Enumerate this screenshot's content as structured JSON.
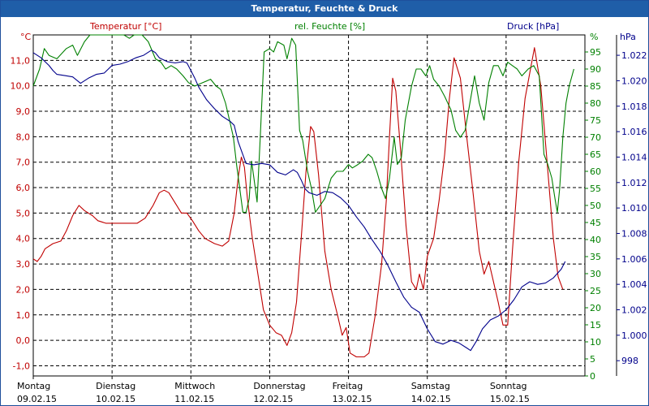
{
  "window": {
    "title": "Temperatur, Feuchte & Druck"
  },
  "chart_data": {
    "type": "line",
    "title": "Temperatur, Feuchte & Druck",
    "x_range": [
      0,
      7
    ],
    "x_unit": "days",
    "categories": [
      {
        "day": "Montag",
        "date": "09.02.15"
      },
      {
        "day": "Dienstag",
        "date": "10.02.15"
      },
      {
        "day": "Mittwoch",
        "date": "11.02.15"
      },
      {
        "day": "Donnerstag",
        "date": "12.02.15"
      },
      {
        "day": "Freitag",
        "date": "13.02.15"
      },
      {
        "day": "Samstag",
        "date": "14.02.15"
      },
      {
        "day": "Sonntag",
        "date": "15.02.15"
      }
    ],
    "grid": true,
    "axes": [
      {
        "id": "temp",
        "side": "left",
        "unit": "°C",
        "label": "Temperatur [°C]",
        "range": [
          -1.4,
          12.0
        ],
        "ticks": [
          "11,0",
          "10,0",
          "9,0",
          "8,0",
          "7,0",
          "6,0",
          "5,0",
          "4,0",
          "3,0",
          "2,0",
          "1,0",
          "0,0",
          "-1,0"
        ],
        "color": "#c00000"
      },
      {
        "id": "hum",
        "side": "right",
        "unit": "%",
        "label": "rel. Feuchte [%]",
        "range": [
          0,
          100
        ],
        "ticks": [
          "95",
          "90",
          "85",
          "80",
          "75",
          "70",
          "65",
          "60",
          "55",
          "50",
          "45",
          "40",
          "35",
          "30",
          "25",
          "20",
          "15",
          "10",
          "5",
          "0"
        ],
        "color": "#008000"
      },
      {
        "id": "press",
        "side": "right",
        "unit": "hPa",
        "label": "Druck [hPa]",
        "range": [
          0.9968,
          1.0236
        ],
        "ticks": [
          "1.022",
          "1.020",
          "1.018",
          "1.016",
          "1.014",
          "1.012",
          "1.010",
          "1.008",
          "1.006",
          "1.004",
          "1.002",
          "1.000",
          "998"
        ],
        "color": "#00008b"
      }
    ],
    "series": [
      {
        "name": "Temperatur",
        "axis": "temp",
        "color": "#c00000",
        "points": [
          [
            0,
            3.2
          ],
          [
            0.05,
            3.1
          ],
          [
            0.1,
            3.3
          ],
          [
            0.15,
            3.6
          ],
          [
            0.25,
            3.8
          ],
          [
            0.35,
            3.9
          ],
          [
            0.42,
            4.3
          ],
          [
            0.5,
            4.9
          ],
          [
            0.58,
            5.3
          ],
          [
            0.65,
            5.1
          ],
          [
            0.75,
            4.9
          ],
          [
            0.82,
            4.7
          ],
          [
            0.92,
            4.6
          ],
          [
            1.0,
            4.6
          ],
          [
            1.1,
            4.6
          ],
          [
            1.2,
            4.6
          ],
          [
            1.32,
            4.6
          ],
          [
            1.42,
            4.8
          ],
          [
            1.52,
            5.3
          ],
          [
            1.6,
            5.8
          ],
          [
            1.66,
            5.9
          ],
          [
            1.72,
            5.8
          ],
          [
            1.8,
            5.4
          ],
          [
            1.88,
            5.0
          ],
          [
            1.95,
            5.0
          ],
          [
            2.02,
            4.7
          ],
          [
            2.1,
            4.3
          ],
          [
            2.18,
            4.0
          ],
          [
            2.3,
            3.8
          ],
          [
            2.4,
            3.7
          ],
          [
            2.48,
            3.9
          ],
          [
            2.55,
            5.0
          ],
          [
            2.6,
            6.4
          ],
          [
            2.64,
            7.2
          ],
          [
            2.68,
            6.8
          ],
          [
            2.72,
            5.5
          ],
          [
            2.78,
            4.0
          ],
          [
            2.85,
            2.6
          ],
          [
            2.92,
            1.2
          ],
          [
            3.0,
            0.6
          ],
          [
            3.08,
            0.3
          ],
          [
            3.15,
            0.2
          ],
          [
            3.22,
            -0.2
          ],
          [
            3.28,
            0.3
          ],
          [
            3.34,
            1.5
          ],
          [
            3.4,
            4.0
          ],
          [
            3.46,
            6.6
          ],
          [
            3.52,
            8.4
          ],
          [
            3.56,
            8.2
          ],
          [
            3.62,
            6.5
          ],
          [
            3.7,
            3.5
          ],
          [
            3.78,
            2.0
          ],
          [
            3.86,
            1.0
          ],
          [
            3.92,
            0.2
          ],
          [
            3.97,
            0.5
          ],
          [
            4.02,
            -0.5
          ],
          [
            4.1,
            -0.65
          ],
          [
            4.2,
            -0.65
          ],
          [
            4.26,
            -0.5
          ],
          [
            4.34,
            1.0
          ],
          [
            4.42,
            3.0
          ],
          [
            4.48,
            5.5
          ],
          [
            4.52,
            8.0
          ],
          [
            4.56,
            10.3
          ],
          [
            4.6,
            9.8
          ],
          [
            4.66,
            7.5
          ],
          [
            4.73,
            4.5
          ],
          [
            4.8,
            2.3
          ],
          [
            4.86,
            2.0
          ],
          [
            4.9,
            2.6
          ],
          [
            4.95,
            2.0
          ],
          [
            5.0,
            3.3
          ],
          [
            5.08,
            4.0
          ],
          [
            5.15,
            5.5
          ],
          [
            5.22,
            7.3
          ],
          [
            5.28,
            9.5
          ],
          [
            5.34,
            11.1
          ],
          [
            5.42,
            10.3
          ],
          [
            5.5,
            8.0
          ],
          [
            5.58,
            5.8
          ],
          [
            5.66,
            3.5
          ],
          [
            5.72,
            2.6
          ],
          [
            5.78,
            3.1
          ],
          [
            5.84,
            2.3
          ],
          [
            5.9,
            1.5
          ],
          [
            5.96,
            0.6
          ],
          [
            6.02,
            0.6
          ],
          [
            6.08,
            3.5
          ],
          [
            6.16,
            7.0
          ],
          [
            6.24,
            9.5
          ],
          [
            6.3,
            10.5
          ],
          [
            6.36,
            11.5
          ],
          [
            6.44,
            10.0
          ],
          [
            6.52,
            7.0
          ],
          [
            6.6,
            4.0
          ],
          [
            6.66,
            2.5
          ],
          [
            6.72,
            2.0
          ]
        ]
      },
      {
        "name": "rel. Feuchte",
        "axis": "hum",
        "color": "#008000",
        "points": [
          [
            0,
            85
          ],
          [
            0.08,
            90
          ],
          [
            0.14,
            96
          ],
          [
            0.2,
            94
          ],
          [
            0.3,
            93
          ],
          [
            0.42,
            96
          ],
          [
            0.5,
            97
          ],
          [
            0.56,
            94
          ],
          [
            0.65,
            98
          ],
          [
            0.72,
            100
          ],
          [
            0.85,
            100
          ],
          [
            0.95,
            100
          ],
          [
            1.05,
            100
          ],
          [
            1.15,
            100
          ],
          [
            1.22,
            99
          ],
          [
            1.28,
            100
          ],
          [
            1.38,
            100
          ],
          [
            1.46,
            98
          ],
          [
            1.55,
            93
          ],
          [
            1.62,
            92
          ],
          [
            1.68,
            90
          ],
          [
            1.75,
            91
          ],
          [
            1.82,
            90
          ],
          [
            1.9,
            88
          ],
          [
            1.97,
            86
          ],
          [
            2.05,
            85
          ],
          [
            2.15,
            86
          ],
          [
            2.25,
            87
          ],
          [
            2.32,
            85
          ],
          [
            2.38,
            84
          ],
          [
            2.44,
            80
          ],
          [
            2.5,
            74
          ],
          [
            2.54,
            70
          ],
          [
            2.58,
            62
          ],
          [
            2.62,
            55
          ],
          [
            2.66,
            48
          ],
          [
            2.7,
            48
          ],
          [
            2.74,
            52
          ],
          [
            2.77,
            63
          ],
          [
            2.8,
            58
          ],
          [
            2.84,
            51
          ],
          [
            2.88,
            70
          ],
          [
            2.93,
            95
          ],
          [
            3.0,
            96
          ],
          [
            3.05,
            95
          ],
          [
            3.1,
            98
          ],
          [
            3.18,
            97
          ],
          [
            3.22,
            93
          ],
          [
            3.28,
            99
          ],
          [
            3.33,
            97
          ],
          [
            3.38,
            72
          ],
          [
            3.42,
            69
          ],
          [
            3.48,
            60
          ],
          [
            3.53,
            55
          ],
          [
            3.58,
            48
          ],
          [
            3.64,
            50
          ],
          [
            3.7,
            52
          ],
          [
            3.78,
            58
          ],
          [
            3.85,
            60
          ],
          [
            3.93,
            60
          ],
          [
            4.0,
            62
          ],
          [
            4.05,
            61
          ],
          [
            4.12,
            62
          ],
          [
            4.18,
            63
          ],
          [
            4.25,
            65
          ],
          [
            4.3,
            64
          ],
          [
            4.36,
            60
          ],
          [
            4.42,
            55
          ],
          [
            4.47,
            52
          ],
          [
            4.52,
            58
          ],
          [
            4.58,
            70
          ],
          [
            4.62,
            62
          ],
          [
            4.67,
            64
          ],
          [
            4.72,
            75
          ],
          [
            4.8,
            85
          ],
          [
            4.86,
            90
          ],
          [
            4.92,
            90
          ],
          [
            4.98,
            88
          ],
          [
            5.03,
            91
          ],
          [
            5.08,
            87
          ],
          [
            5.15,
            85
          ],
          [
            5.22,
            82
          ],
          [
            5.3,
            78
          ],
          [
            5.36,
            72
          ],
          [
            5.42,
            70
          ],
          [
            5.48,
            72
          ],
          [
            5.54,
            80
          ],
          [
            5.6,
            88
          ],
          [
            5.66,
            80
          ],
          [
            5.72,
            75
          ],
          [
            5.78,
            86
          ],
          [
            5.84,
            91
          ],
          [
            5.9,
            91
          ],
          [
            5.96,
            88
          ],
          [
            6.02,
            92
          ],
          [
            6.08,
            91
          ],
          [
            6.14,
            90
          ],
          [
            6.2,
            88
          ],
          [
            6.28,
            90
          ],
          [
            6.35,
            91
          ],
          [
            6.42,
            88
          ],
          [
            6.48,
            65
          ],
          [
            6.53,
            62
          ],
          [
            6.58,
            58
          ],
          [
            6.62,
            52
          ],
          [
            6.65,
            48
          ],
          [
            6.68,
            55
          ],
          [
            6.72,
            70
          ],
          [
            6.76,
            80
          ],
          [
            6.8,
            85
          ],
          [
            6.86,
            90
          ]
        ]
      },
      {
        "name": "Druck",
        "axis": "press",
        "color": "#00008b",
        "points": [
          [
            0,
            1.0222
          ],
          [
            0.1,
            1.0218
          ],
          [
            0.2,
            1.0212
          ],
          [
            0.25,
            1.0208
          ],
          [
            0.3,
            1.0205
          ],
          [
            0.4,
            1.0204
          ],
          [
            0.5,
            1.0203
          ],
          [
            0.6,
            1.0198
          ],
          [
            0.7,
            1.0202
          ],
          [
            0.8,
            1.0205
          ],
          [
            0.9,
            1.0206
          ],
          [
            1.0,
            1.0212
          ],
          [
            1.1,
            1.0213
          ],
          [
            1.2,
            1.0215
          ],
          [
            1.3,
            1.0218
          ],
          [
            1.4,
            1.022
          ],
          [
            1.5,
            1.0224
          ],
          [
            1.55,
            1.0222
          ],
          [
            1.6,
            1.0218
          ],
          [
            1.7,
            1.0215
          ],
          [
            1.8,
            1.0214
          ],
          [
            1.9,
            1.0215
          ],
          [
            1.95,
            1.0214
          ],
          [
            2.0,
            1.0208
          ],
          [
            2.05,
            1.0202
          ],
          [
            2.1,
            1.0195
          ],
          [
            2.2,
            1.0185
          ],
          [
            2.3,
            1.0178
          ],
          [
            2.4,
            1.0172
          ],
          [
            2.5,
            1.0168
          ],
          [
            2.55,
            1.0165
          ],
          [
            2.6,
            1.0152
          ],
          [
            2.7,
            1.0135
          ],
          [
            2.8,
            1.0134
          ],
          [
            2.9,
            1.0135
          ],
          [
            3.0,
            1.0134
          ],
          [
            3.1,
            1.0128
          ],
          [
            3.2,
            1.0126
          ],
          [
            3.3,
            1.013
          ],
          [
            3.35,
            1.0128
          ],
          [
            3.4,
            1.0122
          ],
          [
            3.45,
            1.0115
          ],
          [
            3.5,
            1.0112
          ],
          [
            3.6,
            1.011
          ],
          [
            3.7,
            1.0113
          ],
          [
            3.8,
            1.0112
          ],
          [
            3.9,
            1.0108
          ],
          [
            4.0,
            1.0102
          ],
          [
            4.1,
            1.0093
          ],
          [
            4.2,
            1.0085
          ],
          [
            4.3,
            1.0075
          ],
          [
            4.4,
            1.0066
          ],
          [
            4.5,
            1.0055
          ],
          [
            4.6,
            1.0042
          ],
          [
            4.7,
            1.003
          ],
          [
            4.8,
            1.0022
          ],
          [
            4.9,
            1.0018
          ],
          [
            5.0,
            1.0005
          ],
          [
            5.1,
            0.9995
          ],
          [
            5.2,
            0.9993
          ],
          [
            5.3,
            0.9996
          ],
          [
            5.4,
            0.9994
          ],
          [
            5.5,
            0.999
          ],
          [
            5.55,
            0.9988
          ],
          [
            5.62,
            0.9995
          ],
          [
            5.7,
            1.0005
          ],
          [
            5.8,
            1.0012
          ],
          [
            5.9,
            1.0015
          ],
          [
            6.0,
            1.002
          ],
          [
            6.1,
            1.0028
          ],
          [
            6.2,
            1.0038
          ],
          [
            6.3,
            1.0042
          ],
          [
            6.4,
            1.004
          ],
          [
            6.5,
            1.0041
          ],
          [
            6.6,
            1.0045
          ],
          [
            6.7,
            1.0052
          ],
          [
            6.75,
            1.0058
          ]
        ]
      }
    ]
  }
}
